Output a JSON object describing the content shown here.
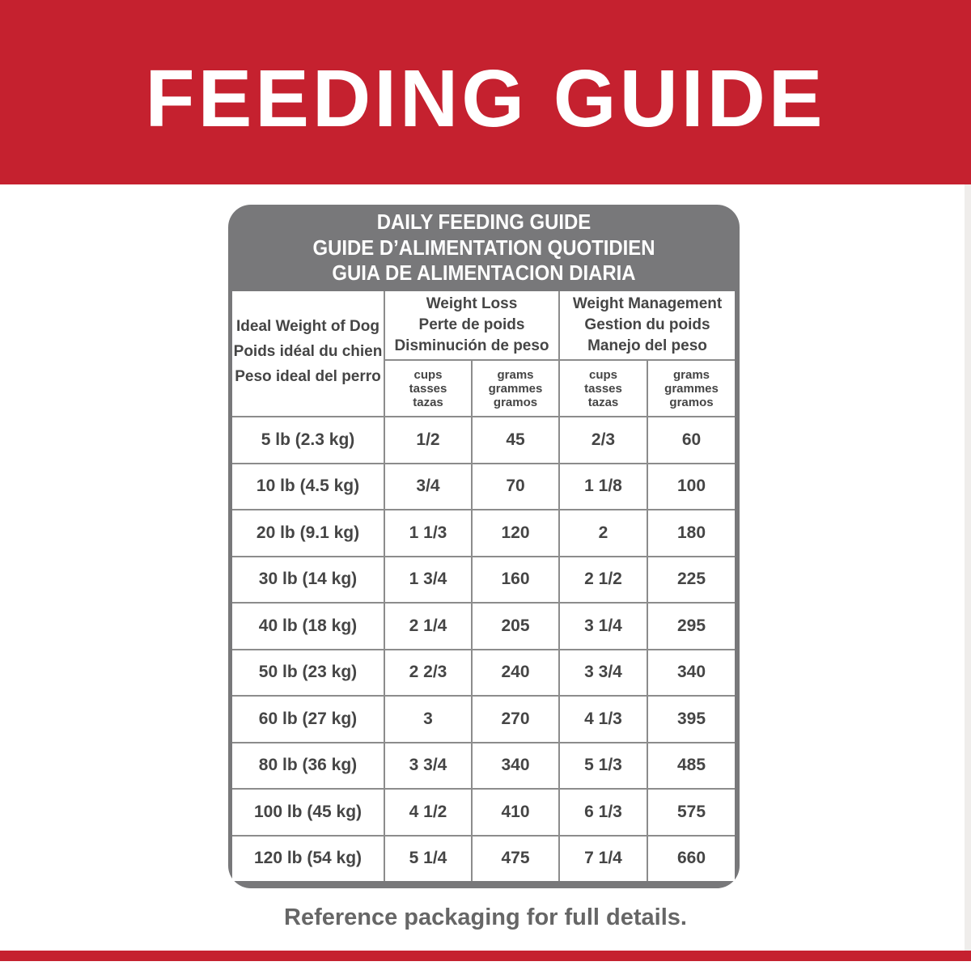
{
  "header": {
    "title": "FEEDING GUIDE"
  },
  "table": {
    "titles": [
      "DAILY FEEDING GUIDE",
      "GUIDE D’ALIMENTATION QUOTIDIEN",
      "GUIA DE ALIMENTACION DIARIA"
    ],
    "weight_header": [
      "Ideal Weight of Dog",
      "Poids idéal du chien",
      "Peso ideal del perro"
    ],
    "groups": [
      [
        "Weight Loss",
        "Perte de poids",
        "Disminución de peso"
      ],
      [
        "Weight Management",
        "Gestion du poids",
        "Manejo del peso"
      ]
    ],
    "units": [
      [
        "cups",
        "tasses",
        "tazas"
      ],
      [
        "grams",
        "grammes",
        "gramos"
      ],
      [
        "cups",
        "tasses",
        "tazas"
      ],
      [
        "grams",
        "grammes",
        "gramos"
      ]
    ],
    "rows": [
      [
        "5 lb (2.3 kg)",
        "1/2",
        45,
        "2/3",
        60
      ],
      [
        "10 lb (4.5 kg)",
        "3/4",
        70,
        "1 1/8",
        100
      ],
      [
        "20 lb (9.1 kg)",
        "1 1/3",
        120,
        "2",
        180
      ],
      [
        "30 lb (14 kg)",
        "1 3/4",
        160,
        "2 1/2",
        225
      ],
      [
        "40 lb (18 kg)",
        "2 1/4",
        205,
        "3 1/4",
        295
      ],
      [
        "50 lb (23 kg)",
        "2 2/3",
        240,
        "3 3/4",
        340
      ],
      [
        "60 lb (27 kg)",
        "3",
        270,
        "4 1/3",
        395
      ],
      [
        "80 lb (36 kg)",
        "3 3/4",
        340,
        "5 1/3",
        485
      ],
      [
        "100 lb (45 kg)",
        "4 1/2",
        410,
        "6 1/3",
        575
      ],
      [
        "120 lb (54 kg)",
        "5 1/4",
        475,
        "7 1/4",
        660
      ]
    ]
  },
  "footer": {
    "note": "Reference packaging for full details."
  }
}
